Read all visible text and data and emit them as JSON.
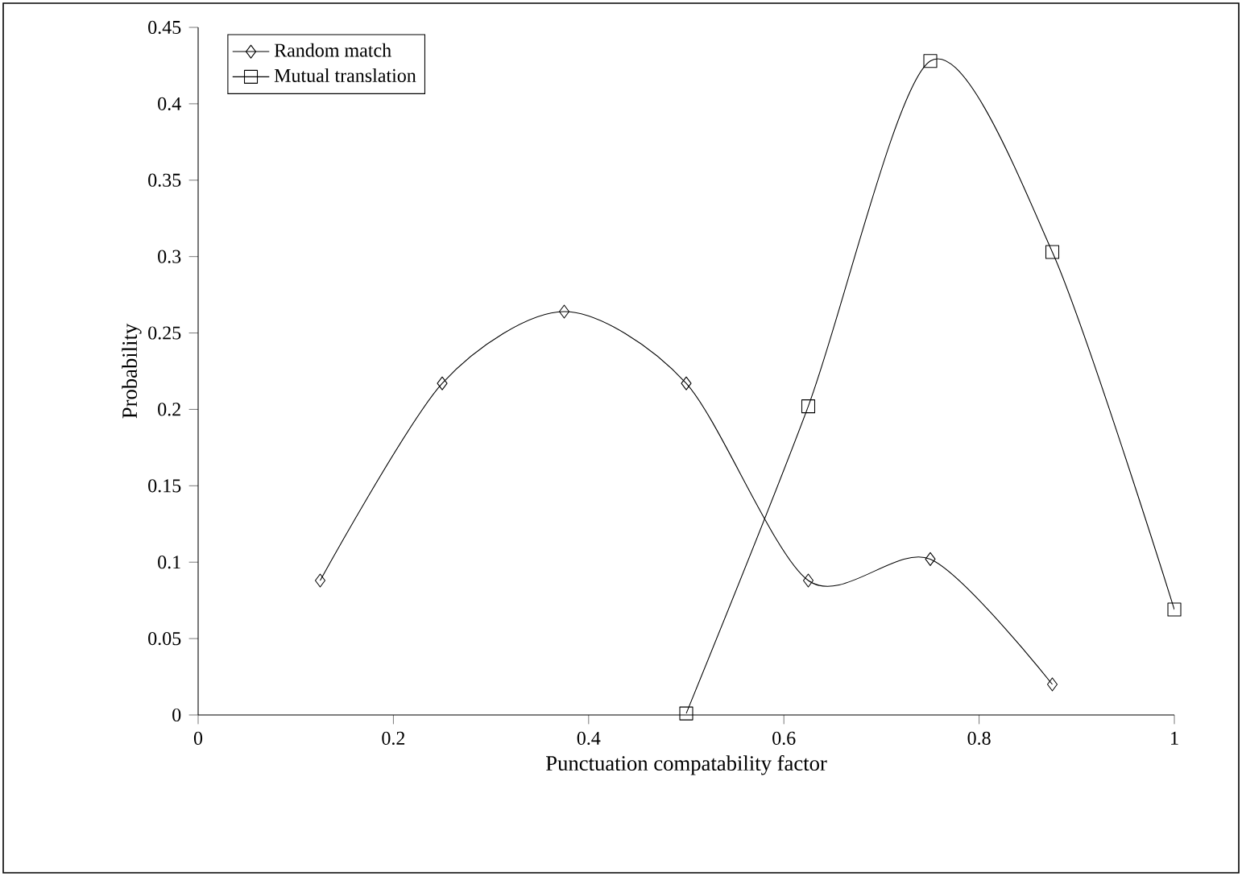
{
  "chart_data": {
    "type": "line",
    "xlabel": "Punctuation compatability factor",
    "ylabel": "Probability",
    "xlim": [
      0,
      1
    ],
    "xticks": [
      0,
      0.2,
      0.4,
      0.6,
      0.8,
      1
    ],
    "ylim": [
      0,
      0.45
    ],
    "yticks": [
      0,
      0.05,
      0.1,
      0.15,
      0.2,
      0.25,
      0.3,
      0.35,
      0.4,
      0.45
    ],
    "grid": false,
    "legend": "top left",
    "series": [
      {
        "name": "Random match",
        "color": "#000000",
        "marker": "diamond",
        "x": [
          0.125,
          0.25,
          0.375,
          0.5,
          0.625,
          0.75,
          0.875
        ],
        "values": [
          0.088,
          0.217,
          0.264,
          0.217,
          0.088,
          0.102,
          0.02
        ]
      },
      {
        "name": "Mutual translation",
        "color": "#000000",
        "marker": "square",
        "x": [
          0.5,
          0.625,
          0.75,
          0.875,
          1
        ],
        "values": [
          0.001,
          0.202,
          0.428,
          0.303,
          0.069
        ]
      }
    ]
  }
}
